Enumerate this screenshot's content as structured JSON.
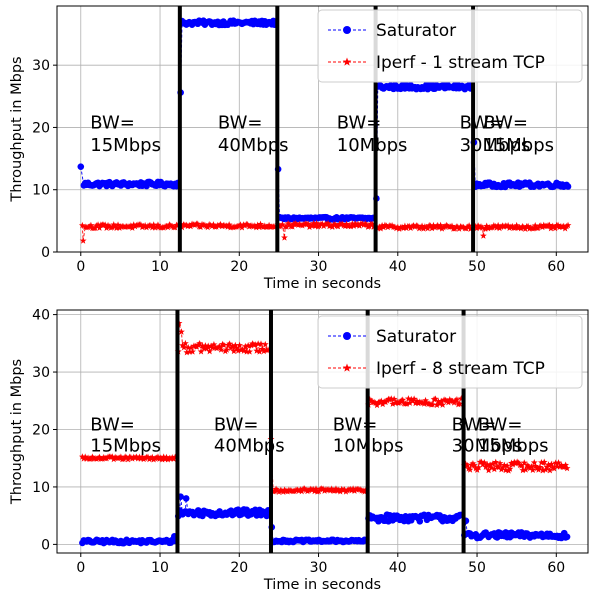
{
  "chart_data": [
    {
      "type": "line",
      "xlabel": "Time in seconds",
      "ylabel": "Throughput in Mbps",
      "xlim": [
        -3,
        64
      ],
      "ylim": [
        0,
        39.5
      ],
      "xticks": [
        0,
        10,
        20,
        30,
        40,
        50,
        60
      ],
      "yticks": [
        0,
        10,
        20,
        30
      ],
      "grid": true,
      "legend_placement": "top-right",
      "boundaries": [
        12.5,
        24.8,
        37.2,
        49.5
      ],
      "bw_labels": [
        {
          "x": 1.2,
          "line1": "BW=",
          "line2": "15Mbps"
        },
        {
          "x": 17.3,
          "line1": "BW=",
          "line2": "40Mbps"
        },
        {
          "x": 32.3,
          "line1": "BW=",
          "line2": "10Mbps"
        },
        {
          "x": 47.8,
          "line1": "BW=",
          "line2": "30Mbps"
        },
        {
          "x": 63.5,
          "line1": "BW=",
          "line2": "15Mbps"
        }
      ],
      "bw_label_y": [
        19.8,
        16.2
      ],
      "series": [
        {
          "name": "Saturator",
          "color": "#0000ff",
          "marker": "circle",
          "segments": [
            {
              "x0": 0.2,
              "x1": 12.3,
              "level": 10.9,
              "noise": 0.35,
              "spikes": [
                [
                  0,
                  13.7
                ]
              ]
            },
            {
              "x0": 12.6,
              "x1": 24.6,
              "level": 36.8,
              "noise": 0.35,
              "spikes": [
                [
                  12.6,
                  25.6
                ]
              ]
            },
            {
              "x0": 24.9,
              "x1": 37.0,
              "level": 5.4,
              "noise": 0.2,
              "spikes": [
                [
                  24.9,
                  13.3
                ]
              ]
            },
            {
              "x0": 37.3,
              "x1": 49.3,
              "level": 26.5,
              "noise": 0.35,
              "spikes": [
                [
                  37.3,
                  8.6
                ]
              ]
            },
            {
              "x0": 49.6,
              "x1": 61.5,
              "level": 10.8,
              "noise": 0.35,
              "spikes": [
                [
                  49.6,
                  17.6
                ]
              ]
            }
          ]
        },
        {
          "name": "Iperf - 1 stream TCP",
          "color": "#ff0000",
          "marker": "star",
          "segments": [
            {
              "x0": 0.2,
              "x1": 12.3,
              "level": 4.1,
              "noise": 0.3,
              "spikes": [
                [
                  0.3,
                  1.8
                ]
              ]
            },
            {
              "x0": 12.6,
              "x1": 24.6,
              "level": 4.2,
              "noise": 0.3,
              "spikes": []
            },
            {
              "x0": 24.9,
              "x1": 37.0,
              "level": 4.3,
              "noise": 0.3,
              "spikes": [
                [
                  25.7,
                  2.3
                ]
              ]
            },
            {
              "x0": 37.3,
              "x1": 49.3,
              "level": 4.0,
              "noise": 0.3,
              "spikes": []
            },
            {
              "x0": 49.6,
              "x1": 61.5,
              "level": 4.0,
              "noise": 0.3,
              "spikes": [
                [
                  50.8,
                  2.6
                ]
              ]
            }
          ]
        }
      ]
    },
    {
      "type": "line",
      "xlabel": "Time in seconds",
      "ylabel": "Throughput in Mbps",
      "xlim": [
        -3,
        64
      ],
      "ylim": [
        -1.5,
        40.8
      ],
      "xticks": [
        0,
        10,
        20,
        30,
        40,
        50,
        60
      ],
      "yticks": [
        0,
        10,
        20,
        30,
        40
      ],
      "grid": true,
      "legend_placement": "top-right",
      "boundaries": [
        12.2,
        24.0,
        36.2,
        48.3
      ],
      "bw_labels": [
        {
          "x": 1.2,
          "line1": "BW=",
          "line2": "15Mbps"
        },
        {
          "x": 16.8,
          "line1": "BW=",
          "line2": "40Mbps"
        },
        {
          "x": 31.8,
          "line1": "BW=",
          "line2": "10Mbps"
        },
        {
          "x": 46.8,
          "line1": "BW=",
          "line2": "30Mbps"
        },
        {
          "x": 62.8,
          "line1": "BW=",
          "line2": "15Mbps"
        }
      ],
      "bw_label_y": [
        19.8,
        16.2
      ],
      "series": [
        {
          "name": "Saturator",
          "color": "#0000ff",
          "marker": "circle",
          "segments": [
            {
              "x0": 0.2,
              "x1": 12.0,
              "level": 0.5,
              "noise": 0.3,
              "spikes": [
                [
                  11.8,
                  1.4
                ]
              ]
            },
            {
              "x0": 12.3,
              "x1": 23.8,
              "level": 5.5,
              "noise": 0.6,
              "spikes": [
                [
                  12.6,
                  8.3
                ],
                [
                  13.3,
                  8.0
                ]
              ]
            },
            {
              "x0": 24.1,
              "x1": 36.0,
              "level": 0.6,
              "noise": 0.2,
              "spikes": [
                [
                  24.1,
                  3.0
                ]
              ]
            },
            {
              "x0": 36.3,
              "x1": 48.1,
              "level": 4.6,
              "noise": 0.6,
              "spikes": []
            },
            {
              "x0": 48.4,
              "x1": 61.5,
              "level": 1.6,
              "noise": 0.5,
              "spikes": [
                [
                  48.6,
                  4.1
                ]
              ]
            }
          ]
        },
        {
          "name": "Iperf - 8 stream TCP",
          "color": "#ff0000",
          "marker": "star",
          "segments": [
            {
              "x0": 0.2,
              "x1": 12.0,
              "level": 15.0,
              "noise": 0.25,
              "spikes": []
            },
            {
              "x0": 12.3,
              "x1": 23.8,
              "level": 34.2,
              "noise": 0.8,
              "spikes": [
                [
                  12.4,
                  38.5
                ],
                [
                  12.7,
                  37.0
                ]
              ]
            },
            {
              "x0": 24.1,
              "x1": 36.0,
              "level": 9.4,
              "noise": 0.3,
              "spikes": [
                [
                  24.0,
                  18.3
                ]
              ]
            },
            {
              "x0": 36.3,
              "x1": 48.1,
              "level": 24.8,
              "noise": 0.6,
              "spikes": []
            },
            {
              "x0": 48.4,
              "x1": 61.5,
              "level": 13.6,
              "noise": 0.8,
              "spikes": []
            }
          ]
        }
      ]
    }
  ]
}
